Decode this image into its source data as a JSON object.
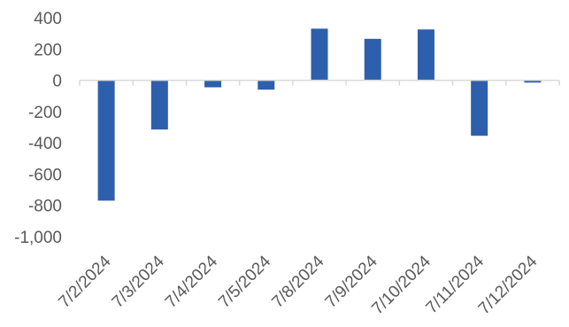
{
  "chart_data": {
    "type": "bar",
    "title": "",
    "xlabel": "",
    "ylabel": "",
    "categories": [
      "7/2/2024",
      "7/3/2024",
      "7/4/2024",
      "7/5/2024",
      "7/8/2024",
      "7/9/2024",
      "7/10/2024",
      "7/11/2024",
      "7/12/2024"
    ],
    "values": [
      -770,
      -315,
      -45,
      -60,
      330,
      265,
      325,
      -355,
      -15
    ],
    "ylim": [
      -1000,
      400
    ],
    "yticks": [
      400,
      200,
      0,
      -200,
      -400,
      -600,
      -800,
      -1000
    ],
    "ytick_labels": [
      "400",
      "200",
      "0",
      "-200",
      "-400",
      "-600",
      "-800",
      "-1,000"
    ],
    "grid": false,
    "legend": "none",
    "colors": {
      "bar": "#2E5FAC",
      "axis": "#D9D9D9",
      "text": "#595959"
    }
  }
}
